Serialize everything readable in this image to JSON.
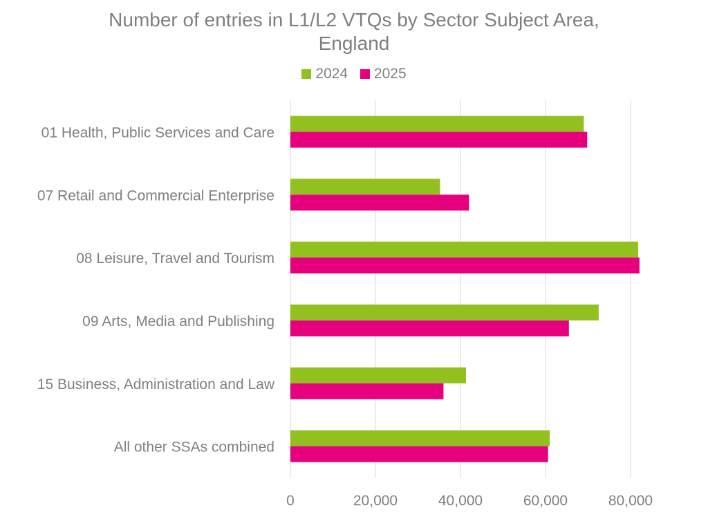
{
  "chart_data": {
    "type": "bar",
    "orientation": "horizontal",
    "title_line1": "Number of entries in L1/L2 VTQs by Sector Subject Area,",
    "title_line2": "England",
    "categories": [
      "01 Health, Public Services and Care",
      "07 Retail and Commercial Enterprise",
      "08 Leisure, Travel and Tourism",
      "09 Arts, Media and Publishing",
      "15 Business, Administration and Law",
      "All other SSAs combined"
    ],
    "series": [
      {
        "name": "2024",
        "color": "#92c01f",
        "values": [
          69000,
          35200,
          81800,
          72500,
          41300,
          61000
        ]
      },
      {
        "name": "2025",
        "color": "#e6007e",
        "values": [
          69800,
          42000,
          82100,
          65500,
          36000,
          60600
        ]
      }
    ],
    "xlim": [
      0,
      80000
    ],
    "xticks": [
      0,
      20000,
      40000,
      60000,
      80000
    ],
    "xtick_labels": [
      "0",
      "20,000",
      "40,000",
      "60,000",
      "80,000"
    ],
    "grid": true,
    "legend_position": "top"
  }
}
